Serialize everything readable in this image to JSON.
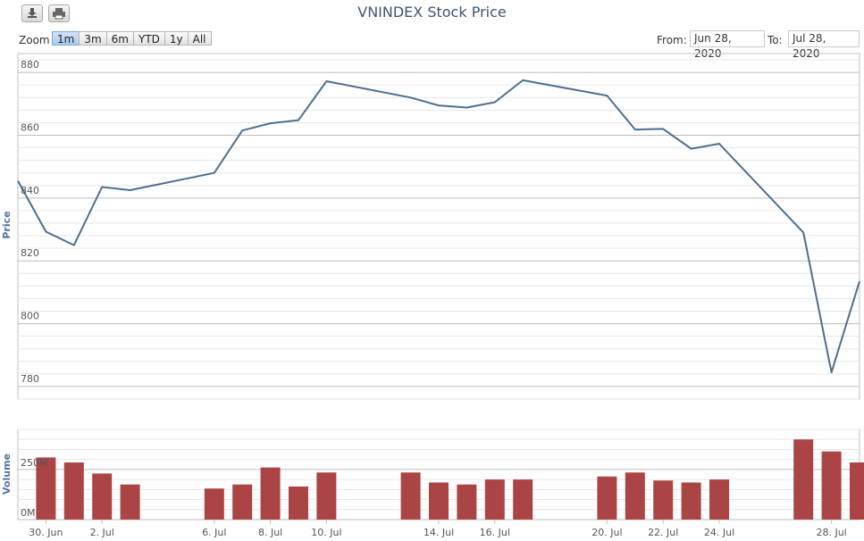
{
  "header": {
    "title": "VNINDEX Stock Price",
    "download_icon": "download-icon",
    "print_icon": "print-icon"
  },
  "range_selector": {
    "zoom_label": "Zoom",
    "buttons": [
      "1m",
      "3m",
      "6m",
      "YTD",
      "1y",
      "All"
    ],
    "active": "1m",
    "from_label": "From:",
    "from_value": "Jun 28, 2020",
    "to_label": "To:",
    "to_value": "Jul 28, 2020"
  },
  "colors": {
    "line": "#4d6f8f",
    "bar": "#ab4444",
    "grid": "#d8d8d8",
    "axis_title": "#4d759e"
  },
  "chart_data": [
    {
      "type": "line",
      "ylabel": "Price",
      "ylim": [
        776,
        886
      ],
      "yticks": [
        780,
        800,
        820,
        840,
        860,
        880
      ],
      "x_domain": [
        "2020-06-29",
        "2020-07-29"
      ],
      "x": [
        "2020-06-29",
        "2020-06-30",
        "2020-07-01",
        "2020-07-02",
        "2020-07-03",
        "2020-07-06",
        "2020-07-07",
        "2020-07-08",
        "2020-07-09",
        "2020-07-10",
        "2020-07-13",
        "2020-07-14",
        "2020-07-15",
        "2020-07-16",
        "2020-07-17",
        "2020-07-20",
        "2020-07-21",
        "2020-07-22",
        "2020-07-23",
        "2020-07-24",
        "2020-07-27",
        "2020-07-28",
        "2020-07-29"
      ],
      "values": [
        845.5,
        829.3,
        825.0,
        843.5,
        842.5,
        848.0,
        861.5,
        863.8,
        864.8,
        877.2,
        872.0,
        869.5,
        868.8,
        870.5,
        877.5,
        872.6,
        861.8,
        862.0,
        855.7,
        857.3,
        829.0,
        784.5,
        813.5
      ]
    },
    {
      "type": "bar",
      "ylabel": "Volume",
      "ylim": [
        0,
        450
      ],
      "yticks": [
        0,
        250
      ],
      "ytick_labels": [
        "0M",
        "250M"
      ],
      "x": [
        "2020-06-29",
        "2020-06-30",
        "2020-07-01",
        "2020-07-02",
        "2020-07-03",
        "2020-07-06",
        "2020-07-07",
        "2020-07-08",
        "2020-07-09",
        "2020-07-10",
        "2020-07-13",
        "2020-07-14",
        "2020-07-15",
        "2020-07-16",
        "2020-07-17",
        "2020-07-20",
        "2020-07-21",
        "2020-07-22",
        "2020-07-23",
        "2020-07-24",
        "2020-07-27",
        "2020-07-28",
        "2020-07-29"
      ],
      "values": [
        null,
        310,
        285,
        230,
        175,
        155,
        175,
        260,
        165,
        235,
        235,
        185,
        175,
        200,
        200,
        215,
        235,
        195,
        185,
        200,
        400,
        340,
        285
      ]
    }
  ],
  "x_axis": {
    "ticks": [
      {
        "date": "2020-06-30",
        "label": "30. Jun"
      },
      {
        "date": "2020-07-02",
        "label": "2. Jul"
      },
      {
        "date": "2020-07-06",
        "label": "6. Jul"
      },
      {
        "date": "2020-07-08",
        "label": "8. Jul"
      },
      {
        "date": "2020-07-10",
        "label": "10. Jul"
      },
      {
        "date": "2020-07-14",
        "label": "14. Jul"
      },
      {
        "date": "2020-07-16",
        "label": "16. Jul"
      },
      {
        "date": "2020-07-20",
        "label": "20. Jul"
      },
      {
        "date": "2020-07-22",
        "label": "22. Jul"
      },
      {
        "date": "2020-07-24",
        "label": "24. Jul"
      },
      {
        "date": "2020-07-28",
        "label": "28. Jul"
      }
    ]
  }
}
